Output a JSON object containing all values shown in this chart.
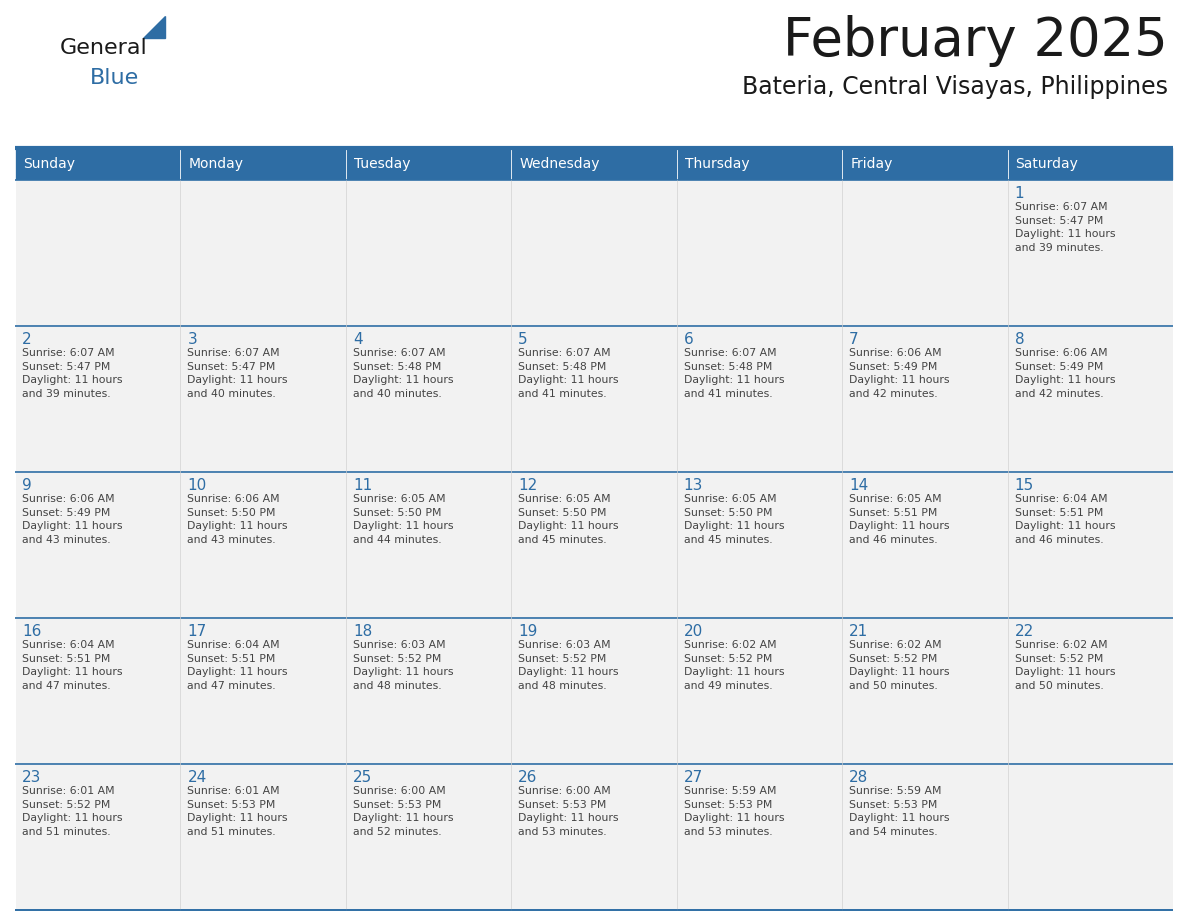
{
  "title": "February 2025",
  "subtitle": "Bateria, Central Visayas, Philippines",
  "header_bg": "#2E6DA4",
  "header_text_color": "#FFFFFF",
  "cell_bg": "#F2F2F2",
  "border_color": "#2E6DA4",
  "day_headers": [
    "Sunday",
    "Monday",
    "Tuesday",
    "Wednesday",
    "Thursday",
    "Friday",
    "Saturday"
  ],
  "title_color": "#1a1a1a",
  "subtitle_color": "#1a1a1a",
  "day_num_color": "#2E6DA4",
  "cell_text_color": "#444444",
  "logo_general_color": "#1a1a1a",
  "logo_blue_color": "#2E6DA4",
  "weeks": [
    [
      {
        "day": 0,
        "text": ""
      },
      {
        "day": 0,
        "text": ""
      },
      {
        "day": 0,
        "text": ""
      },
      {
        "day": 0,
        "text": ""
      },
      {
        "day": 0,
        "text": ""
      },
      {
        "day": 0,
        "text": ""
      },
      {
        "day": 1,
        "text": "Sunrise: 6:07 AM\nSunset: 5:47 PM\nDaylight: 11 hours\nand 39 minutes."
      }
    ],
    [
      {
        "day": 2,
        "text": "Sunrise: 6:07 AM\nSunset: 5:47 PM\nDaylight: 11 hours\nand 39 minutes."
      },
      {
        "day": 3,
        "text": "Sunrise: 6:07 AM\nSunset: 5:47 PM\nDaylight: 11 hours\nand 40 minutes."
      },
      {
        "day": 4,
        "text": "Sunrise: 6:07 AM\nSunset: 5:48 PM\nDaylight: 11 hours\nand 40 minutes."
      },
      {
        "day": 5,
        "text": "Sunrise: 6:07 AM\nSunset: 5:48 PM\nDaylight: 11 hours\nand 41 minutes."
      },
      {
        "day": 6,
        "text": "Sunrise: 6:07 AM\nSunset: 5:48 PM\nDaylight: 11 hours\nand 41 minutes."
      },
      {
        "day": 7,
        "text": "Sunrise: 6:06 AM\nSunset: 5:49 PM\nDaylight: 11 hours\nand 42 minutes."
      },
      {
        "day": 8,
        "text": "Sunrise: 6:06 AM\nSunset: 5:49 PM\nDaylight: 11 hours\nand 42 minutes."
      }
    ],
    [
      {
        "day": 9,
        "text": "Sunrise: 6:06 AM\nSunset: 5:49 PM\nDaylight: 11 hours\nand 43 minutes."
      },
      {
        "day": 10,
        "text": "Sunrise: 6:06 AM\nSunset: 5:50 PM\nDaylight: 11 hours\nand 43 minutes."
      },
      {
        "day": 11,
        "text": "Sunrise: 6:05 AM\nSunset: 5:50 PM\nDaylight: 11 hours\nand 44 minutes."
      },
      {
        "day": 12,
        "text": "Sunrise: 6:05 AM\nSunset: 5:50 PM\nDaylight: 11 hours\nand 45 minutes."
      },
      {
        "day": 13,
        "text": "Sunrise: 6:05 AM\nSunset: 5:50 PM\nDaylight: 11 hours\nand 45 minutes."
      },
      {
        "day": 14,
        "text": "Sunrise: 6:05 AM\nSunset: 5:51 PM\nDaylight: 11 hours\nand 46 minutes."
      },
      {
        "day": 15,
        "text": "Sunrise: 6:04 AM\nSunset: 5:51 PM\nDaylight: 11 hours\nand 46 minutes."
      }
    ],
    [
      {
        "day": 16,
        "text": "Sunrise: 6:04 AM\nSunset: 5:51 PM\nDaylight: 11 hours\nand 47 minutes."
      },
      {
        "day": 17,
        "text": "Sunrise: 6:04 AM\nSunset: 5:51 PM\nDaylight: 11 hours\nand 47 minutes."
      },
      {
        "day": 18,
        "text": "Sunrise: 6:03 AM\nSunset: 5:52 PM\nDaylight: 11 hours\nand 48 minutes."
      },
      {
        "day": 19,
        "text": "Sunrise: 6:03 AM\nSunset: 5:52 PM\nDaylight: 11 hours\nand 48 minutes."
      },
      {
        "day": 20,
        "text": "Sunrise: 6:02 AM\nSunset: 5:52 PM\nDaylight: 11 hours\nand 49 minutes."
      },
      {
        "day": 21,
        "text": "Sunrise: 6:02 AM\nSunset: 5:52 PM\nDaylight: 11 hours\nand 50 minutes."
      },
      {
        "day": 22,
        "text": "Sunrise: 6:02 AM\nSunset: 5:52 PM\nDaylight: 11 hours\nand 50 minutes."
      }
    ],
    [
      {
        "day": 23,
        "text": "Sunrise: 6:01 AM\nSunset: 5:52 PM\nDaylight: 11 hours\nand 51 minutes."
      },
      {
        "day": 24,
        "text": "Sunrise: 6:01 AM\nSunset: 5:53 PM\nDaylight: 11 hours\nand 51 minutes."
      },
      {
        "day": 25,
        "text": "Sunrise: 6:00 AM\nSunset: 5:53 PM\nDaylight: 11 hours\nand 52 minutes."
      },
      {
        "day": 26,
        "text": "Sunrise: 6:00 AM\nSunset: 5:53 PM\nDaylight: 11 hours\nand 53 minutes."
      },
      {
        "day": 27,
        "text": "Sunrise: 5:59 AM\nSunset: 5:53 PM\nDaylight: 11 hours\nand 53 minutes."
      },
      {
        "day": 28,
        "text": "Sunrise: 5:59 AM\nSunset: 5:53 PM\nDaylight: 11 hours\nand 54 minutes."
      },
      {
        "day": 0,
        "text": ""
      }
    ]
  ]
}
